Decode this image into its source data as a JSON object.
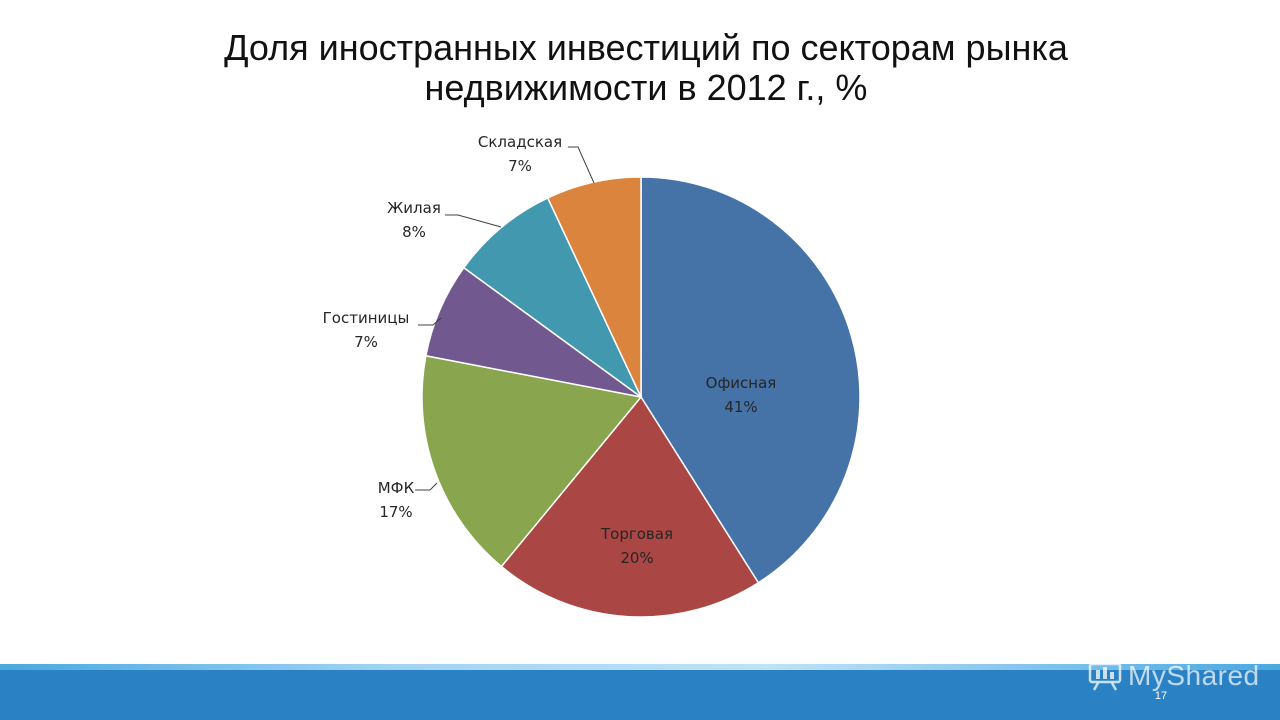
{
  "slide": {
    "title_line1": "Доля иностранных инвестиций по секторам рынка",
    "title_line2": "недвижимости в 2012 г., %",
    "page_number": "17",
    "watermark": "MyShared"
  },
  "chart_data": {
    "type": "pie",
    "title": "Доля иностранных инвестиций по секторам рынка недвижимости в 2012 г., %",
    "categories": [
      "Офисная",
      "Торговая",
      "МФК",
      "Гостиницы",
      "Жилая",
      "Складская"
    ],
    "values": [
      41,
      20,
      17,
      7,
      8,
      7
    ],
    "value_labels": [
      "41%",
      "20%",
      "17%",
      "7%",
      "8%",
      "7%"
    ],
    "colors": [
      "#4572a7",
      "#aa4643",
      "#89a54e",
      "#71588f",
      "#4198af",
      "#db843d"
    ],
    "start_angle_deg": 0,
    "direction": "clockwise",
    "legend": "none"
  }
}
